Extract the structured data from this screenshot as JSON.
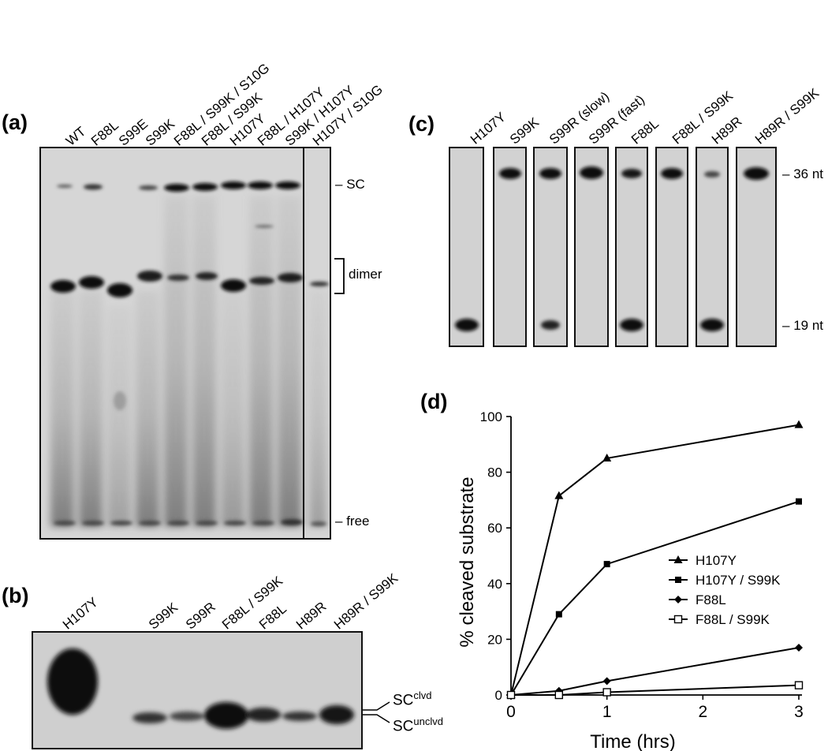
{
  "figure": {
    "panels": [
      {
        "letter": "(a)",
        "lanes": [
          "WT",
          "F88L",
          "S99E",
          "S99K",
          "F88L / S99K / S10G",
          "F88L / S99K",
          "H107Y",
          "F88L / H107Y",
          "S99K / H107Y",
          "H107Y / S10G"
        ],
        "markers": [
          "SC",
          "dimer",
          "free"
        ]
      },
      {
        "letter": "(b)",
        "lanes": [
          "H107Y",
          "S99K",
          "S99R",
          "F88L / S99K",
          "F88L",
          "H89R",
          "H89R / S99K"
        ],
        "markers": {
          "clvd_base": "SC",
          "clvd_sup": "clvd",
          "unclvd_base": "SC",
          "unclvd_sup": "unclvd"
        }
      },
      {
        "letter": "(c)",
        "lanes": [
          "H107Y",
          "S99K",
          "S99R (slow)",
          "S99R (fast)",
          "F88L",
          "F88L / S99K",
          "H89R",
          "H89R / S99K"
        ],
        "markers": [
          "36 nt",
          "19 nt"
        ]
      },
      {
        "letter": "(d)"
      }
    ]
  },
  "chart_data": {
    "type": "line",
    "xlabel": "Time (hrs)",
    "ylabel": "% cleaved substrate",
    "xlim": [
      0,
      3
    ],
    "ylim": [
      0,
      100
    ],
    "xticks": [
      "0",
      "1",
      "2",
      "3"
    ],
    "yticks": [
      "0",
      "20",
      "40",
      "60",
      "80",
      "100"
    ],
    "grid": false,
    "legend_position": "right",
    "x": [
      0,
      0.5,
      1,
      3
    ],
    "series": [
      {
        "name": "H107Y",
        "marker": "filled-triangle",
        "values": [
          0,
          71.5,
          85,
          97
        ]
      },
      {
        "name": "H107Y / S99K",
        "marker": "filled-square",
        "values": [
          0,
          29,
          47,
          69.5
        ]
      },
      {
        "name": "F88L",
        "marker": "filled-diamond",
        "values": [
          0,
          1.5,
          5,
          17
        ]
      },
      {
        "name": "F88L / S99K",
        "marker": "open-square",
        "values": [
          0,
          0,
          1,
          3.5
        ]
      }
    ]
  }
}
